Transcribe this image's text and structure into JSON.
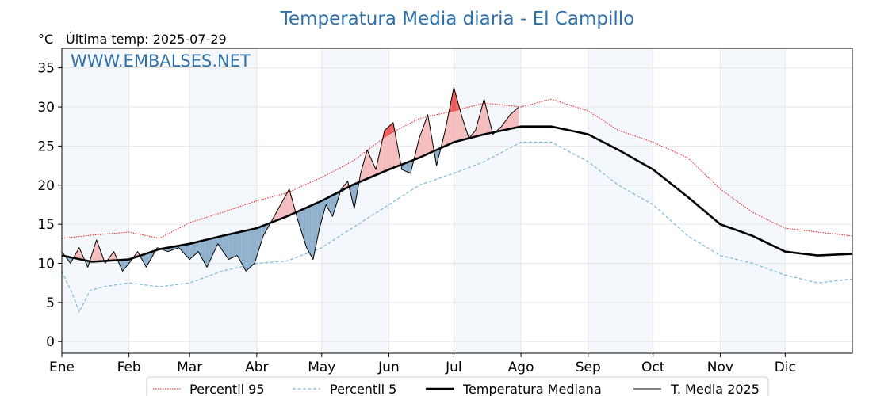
{
  "chart_data": {
    "type": "line",
    "title": "Temperatura Media diaria - El Campillo",
    "subtitle_unit": "°C",
    "subtitle": "Última temp: 2025-07-29",
    "watermark": "WWW.EMBALSES.NET",
    "xlabel": "",
    "ylabel": "",
    "x_unit": "día del año",
    "xlim": [
      1,
      366
    ],
    "ylim": [
      -1.5,
      37.5
    ],
    "y_ticks": [
      0,
      5,
      10,
      15,
      20,
      25,
      30,
      35
    ],
    "x_ticks": [
      {
        "label": "Ene",
        "day": 1
      },
      {
        "label": "Feb",
        "day": 32
      },
      {
        "label": "Mar",
        "day": 60
      },
      {
        "label": "Abr",
        "day": 91
      },
      {
        "label": "May",
        "day": 121
      },
      {
        "label": "Jun",
        "day": 152
      },
      {
        "label": "Jul",
        "day": 182
      },
      {
        "label": "Ago",
        "day": 213
      },
      {
        "label": "Sep",
        "day": 244
      },
      {
        "label": "Oct",
        "day": 274
      },
      {
        "label": "Nov",
        "day": 305
      },
      {
        "label": "Dic",
        "day": 335
      }
    ],
    "grid": true,
    "shaded_months": [
      "Ene",
      "Mar",
      "May",
      "Jul",
      "Sep",
      "Nov"
    ],
    "legend_position": "bottom-center",
    "fill_colors": {
      "above_median": "#f4bcbc",
      "above_p95": "#ee5c5c",
      "below_median": "#8fb0cc"
    },
    "series": [
      {
        "name": "Percentil 95",
        "color": "#e8191a",
        "style": "dotted",
        "points": [
          [
            1,
            13.2
          ],
          [
            15,
            13.6
          ],
          [
            32,
            14.0
          ],
          [
            46,
            13.2
          ],
          [
            60,
            15.2
          ],
          [
            75,
            16.5
          ],
          [
            91,
            18.0
          ],
          [
            105,
            19.0
          ],
          [
            121,
            21.0
          ],
          [
            135,
            23.0
          ],
          [
            152,
            26.5
          ],
          [
            166,
            28.5
          ],
          [
            182,
            29.5
          ],
          [
            196,
            30.5
          ],
          [
            213,
            30.0
          ],
          [
            227,
            31.0
          ],
          [
            244,
            29.5
          ],
          [
            258,
            27.0
          ],
          [
            274,
            25.5
          ],
          [
            290,
            23.5
          ],
          [
            305,
            19.5
          ],
          [
            320,
            16.5
          ],
          [
            335,
            14.5
          ],
          [
            350,
            14.0
          ],
          [
            366,
            13.5
          ]
        ]
      },
      {
        "name": "Percentil 5",
        "color": "#7ab8d8",
        "style": "dashed",
        "points": [
          [
            1,
            9.0
          ],
          [
            6,
            6.0
          ],
          [
            9,
            3.8
          ],
          [
            14,
            6.5
          ],
          [
            20,
            7.0
          ],
          [
            32,
            7.5
          ],
          [
            46,
            7.0
          ],
          [
            60,
            7.5
          ],
          [
            75,
            9.0
          ],
          [
            91,
            10.0
          ],
          [
            105,
            10.3
          ],
          [
            121,
            12.0
          ],
          [
            135,
            14.5
          ],
          [
            152,
            17.5
          ],
          [
            166,
            20.0
          ],
          [
            182,
            21.5
          ],
          [
            196,
            23.0
          ],
          [
            213,
            25.5
          ],
          [
            227,
            25.5
          ],
          [
            244,
            23.0
          ],
          [
            258,
            20.0
          ],
          [
            274,
            17.5
          ],
          [
            290,
            13.5
          ],
          [
            305,
            11.0
          ],
          [
            320,
            10.0
          ],
          [
            335,
            8.5
          ],
          [
            350,
            7.5
          ],
          [
            366,
            8.0
          ]
        ]
      },
      {
        "name": "Temperatura Mediana",
        "color": "#000000",
        "style": "solid-thick",
        "points": [
          [
            1,
            11.0
          ],
          [
            15,
            10.2
          ],
          [
            32,
            10.5
          ],
          [
            46,
            11.8
          ],
          [
            60,
            12.5
          ],
          [
            75,
            13.5
          ],
          [
            91,
            14.5
          ],
          [
            105,
            16.0
          ],
          [
            121,
            18.0
          ],
          [
            135,
            20.0
          ],
          [
            152,
            22.0
          ],
          [
            166,
            23.5
          ],
          [
            182,
            25.5
          ],
          [
            196,
            26.5
          ],
          [
            213,
            27.5
          ],
          [
            227,
            27.5
          ],
          [
            244,
            26.5
          ],
          [
            258,
            24.5
          ],
          [
            274,
            22.0
          ],
          [
            290,
            18.5
          ],
          [
            305,
            15.0
          ],
          [
            320,
            13.5
          ],
          [
            335,
            11.5
          ],
          [
            350,
            11.0
          ],
          [
            366,
            11.2
          ]
        ]
      },
      {
        "name": "T. Media 2025",
        "color": "#000000",
        "style": "solid-thin",
        "points": [
          [
            1,
            11.5
          ],
          [
            5,
            10.0
          ],
          [
            9,
            12.0
          ],
          [
            13,
            9.5
          ],
          [
            17,
            13.0
          ],
          [
            21,
            10.0
          ],
          [
            25,
            11.5
          ],
          [
            29,
            9.0
          ],
          [
            32,
            10.0
          ],
          [
            36,
            11.5
          ],
          [
            40,
            9.5
          ],
          [
            45,
            12.0
          ],
          [
            50,
            11.5
          ],
          [
            55,
            12.0
          ],
          [
            60,
            10.5
          ],
          [
            64,
            11.5
          ],
          [
            68,
            9.5
          ],
          [
            73,
            12.5
          ],
          [
            78,
            10.5
          ],
          [
            82,
            11.0
          ],
          [
            86,
            9.0
          ],
          [
            90,
            10.0
          ],
          [
            94,
            13.5
          ],
          [
            98,
            15.5
          ],
          [
            102,
            17.5
          ],
          [
            106,
            19.5
          ],
          [
            110,
            15.5
          ],
          [
            114,
            12.0
          ],
          [
            117,
            10.5
          ],
          [
            120,
            14.5
          ],
          [
            123,
            17.5
          ],
          [
            126,
            16.0
          ],
          [
            130,
            19.5
          ],
          [
            133,
            20.5
          ],
          [
            136,
            17.0
          ],
          [
            139,
            21.5
          ],
          [
            142,
            24.5
          ],
          [
            146,
            22.0
          ],
          [
            150,
            27.0
          ],
          [
            154,
            28.0
          ],
          [
            158,
            22.0
          ],
          [
            162,
            21.5
          ],
          [
            166,
            26.0
          ],
          [
            170,
            29.0
          ],
          [
            174,
            22.5
          ],
          [
            178,
            27.0
          ],
          [
            182,
            32.5
          ],
          [
            186,
            28.5
          ],
          [
            189,
            26.0
          ],
          [
            192,
            27.0
          ],
          [
            196,
            31.0
          ],
          [
            200,
            26.5
          ],
          [
            204,
            27.5
          ],
          [
            208,
            29.0
          ],
          [
            212,
            30.0
          ]
        ]
      }
    ]
  },
  "legend": [
    {
      "label": "Percentil 95"
    },
    {
      "label": "Percentil 5"
    },
    {
      "label": "Temperatura Mediana"
    },
    {
      "label": "T. Media 2025"
    }
  ]
}
